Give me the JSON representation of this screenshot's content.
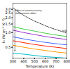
{
  "chart_data": {
    "type": "line",
    "xlabel": "Temperature (K)",
    "ylabel": "kₗ (W m⁻¹ K⁻¹)",
    "log": "y",
    "grid": false,
    "xlim": [
      300,
      800
    ],
    "xticks": [
      300,
      400,
      500,
      600,
      700,
      800
    ],
    "ylim": [
      0.3,
      4.0
    ],
    "yticks": [
      0.5,
      {
        "value": 1.0,
        "label": "1.0"
      },
      1.5,
      {
        "value": 2.0,
        "label": "2.0"
      },
      2.5,
      {
        "value": 3.0,
        "label": "3.0"
      }
    ],
    "series": [
      {
        "color": "#222222",
        "line_style": "dotted",
        "x": [
          300,
          350,
          400,
          450,
          500,
          550,
          600,
          650,
          700,
          750,
          800
        ],
        "values": [
          3.2,
          2.65,
          2.25,
          1.95,
          1.72,
          1.54,
          1.38,
          1.25,
          1.15,
          1.06,
          0.98
        ]
      },
      {
        "color": "#44cc44",
        "line_style": "solid",
        "x": [
          300,
          400,
          500,
          600,
          700,
          800
        ],
        "values": [
          1.32,
          1.18,
          1.07,
          0.97,
          0.89,
          0.83
        ]
      },
      {
        "color": "#9933cc",
        "line_style": "solid",
        "x": [
          300,
          400,
          500,
          600,
          700,
          800
        ],
        "values": [
          1.12,
          1.0,
          0.91,
          0.83,
          0.77,
          0.72
        ]
      },
      {
        "color": "#4466ff",
        "line_style": "solid",
        "x": [
          300,
          400,
          500,
          600,
          700,
          800
        ],
        "values": [
          0.82,
          0.74,
          0.68,
          0.63,
          0.59,
          0.56
        ]
      },
      {
        "color": "#ff2200",
        "line_style": "solid",
        "x": [
          300,
          400,
          500,
          600,
          700,
          800
        ],
        "values": [
          0.68,
          0.62,
          0.57,
          0.53,
          0.5,
          0.47
        ]
      },
      {
        "color": "#ff9900",
        "line_style": "solid",
        "x": [
          300,
          400,
          500,
          600,
          700,
          800
        ],
        "values": [
          0.55,
          0.5,
          0.46,
          0.43,
          0.4,
          0.38
        ]
      },
      {
        "color": "#00bbcc",
        "line_style": "solid",
        "x": [
          300,
          400,
          500,
          600,
          700,
          800
        ],
        "values": [
          0.38,
          0.36,
          0.34,
          0.32,
          0.31,
          0.3
        ]
      }
    ],
    "annotations": [
      {
        "text": "Effect of nanostructuring",
        "x": 323,
        "y": 2.78
      },
      {
        "text": "Solid solution effect",
        "x": 323,
        "y": 2.5
      },
      {
        "text": "PbTe",
        "x": 755,
        "y": 1.08
      }
    ],
    "arrows": [
      {
        "x": 318,
        "y_start": 2.9,
        "y_end": 0.42
      }
    ]
  }
}
